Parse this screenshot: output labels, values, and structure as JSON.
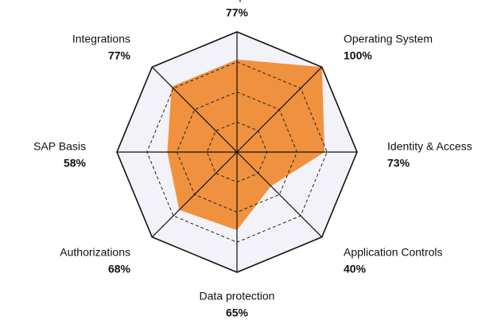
{
  "chart_data": {
    "type": "radar",
    "categories": [
      "Development",
      "Operating System",
      "Identity & Access",
      "Application Controls",
      "Data protection",
      "Authorizations",
      "SAP Basis",
      "Integrations"
    ],
    "values": [
      77,
      100,
      73,
      40,
      65,
      68,
      58,
      77
    ],
    "value_labels": [
      "77%",
      "100%",
      "73%",
      "40%",
      "65%",
      "68%",
      "58%",
      "77%"
    ],
    "color": "#f0913f",
    "ylim": [
      0,
      100
    ],
    "yticks": [
      0,
      25,
      50,
      75,
      100
    ],
    "grid": true
  }
}
